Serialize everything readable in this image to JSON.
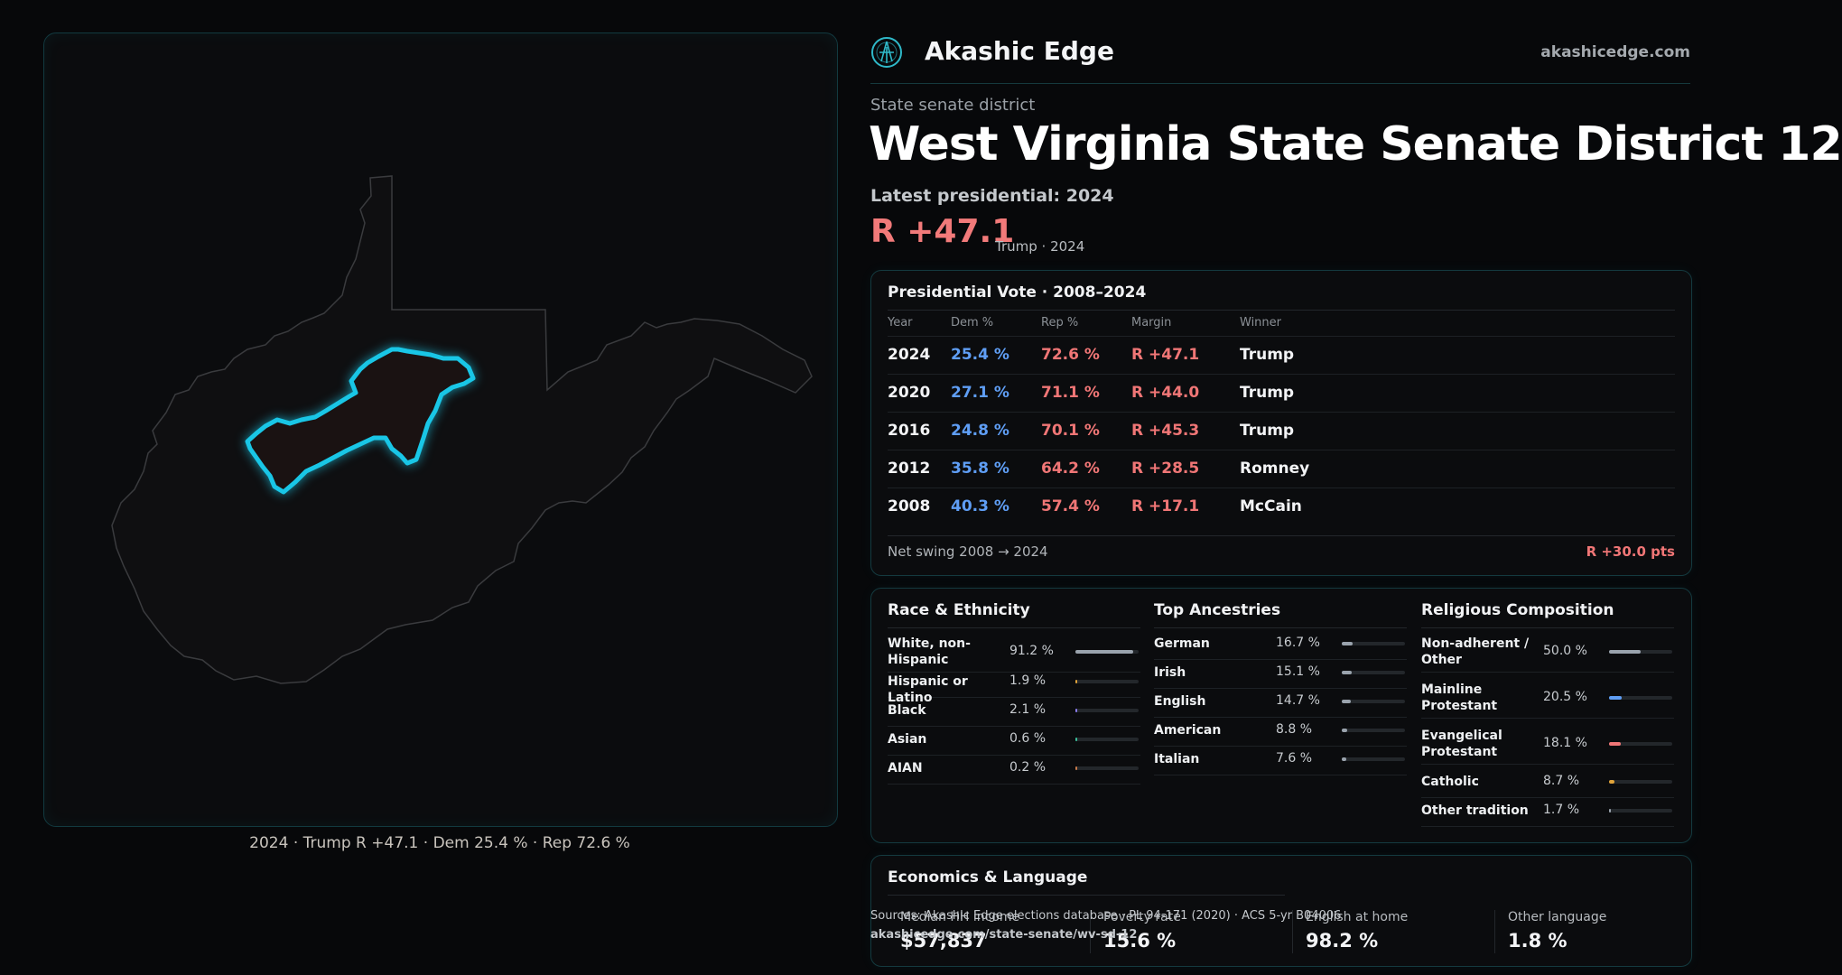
{
  "brand": {
    "name": "Akashic Edge",
    "url": "akashicedge.com",
    "logo_icon": "compass-logo-icon"
  },
  "kicker": "State senate district",
  "title": "West Virginia State Senate District 12",
  "latest_label": "Latest presidential: 2024",
  "headline_margin": "R +47.1",
  "headline_sub": "Trump · 2024",
  "map_caption": "2024 · Trump R +47.1 · Dem 25.4 % · Rep 72.6 %",
  "presidential": {
    "title": "Presidential Vote · 2008–2024",
    "headers": [
      "Year",
      "Dem %",
      "Rep %",
      "Margin",
      "Winner"
    ],
    "rows": [
      {
        "year": "2024",
        "dem": "25.4 %",
        "rep": "72.6 %",
        "margin": "R +47.1",
        "winner": "Trump"
      },
      {
        "year": "2020",
        "dem": "27.1 %",
        "rep": "71.1 %",
        "margin": "R +44.0",
        "winner": "Trump"
      },
      {
        "year": "2016",
        "dem": "24.8 %",
        "rep": "70.1 %",
        "margin": "R +45.3",
        "winner": "Trump"
      },
      {
        "year": "2012",
        "dem": "35.8 %",
        "rep": "64.2 %",
        "margin": "R +28.5",
        "winner": "Romney"
      },
      {
        "year": "2008",
        "dem": "40.3 %",
        "rep": "57.4 %",
        "margin": "R +17.1",
        "winner": "McCain"
      }
    ],
    "swing_label": "Net swing 2008 → 2024",
    "swing_value": "R +30.0 pts"
  },
  "race": {
    "title": "Race & Ethnicity",
    "rows": [
      {
        "label": "White, non-Hispanic",
        "value": "91.2 %",
        "pct": 91.2,
        "color": "#9aa3ad"
      },
      {
        "label": "Hispanic or Latino",
        "value": "1.9 %",
        "pct": 1.9,
        "color": "#e0a33a"
      },
      {
        "label": "Black",
        "value": "2.1 %",
        "pct": 2.1,
        "color": "#8b7cf0"
      },
      {
        "label": "Asian",
        "value": "0.6 %",
        "pct": 0.6,
        "color": "#3bbf9a"
      },
      {
        "label": "AIAN",
        "value": "0.2 %",
        "pct": 0.2,
        "color": "#c97b4b"
      }
    ]
  },
  "ancestry": {
    "title": "Top Ancestries",
    "rows": [
      {
        "label": "German",
        "value": "16.7 %",
        "pct": 16.7,
        "color": "#9aa3ad"
      },
      {
        "label": "Irish",
        "value": "15.1 %",
        "pct": 15.1,
        "color": "#9aa3ad"
      },
      {
        "label": "English",
        "value": "14.7 %",
        "pct": 14.7,
        "color": "#9aa3ad"
      },
      {
        "label": "American",
        "value": "8.8 %",
        "pct": 8.8,
        "color": "#9aa3ad"
      },
      {
        "label": "Italian",
        "value": "7.6 %",
        "pct": 7.6,
        "color": "#9aa3ad"
      }
    ]
  },
  "religion": {
    "title": "Religious Composition",
    "rows": [
      {
        "label": "Non-adherent / Other",
        "value": "50.0 %",
        "pct": 50.0,
        "color": "#9aa3ad"
      },
      {
        "label": "Mainline Protestant",
        "value": "20.5 %",
        "pct": 20.5,
        "color": "#5f9ef5"
      },
      {
        "label": "Evangelical Protestant",
        "value": "18.1 %",
        "pct": 18.1,
        "color": "#f07676"
      },
      {
        "label": "Catholic",
        "value": "8.7 %",
        "pct": 8.7,
        "color": "#e0a33a"
      },
      {
        "label": "Other tradition",
        "value": "1.7 %",
        "pct": 1.7,
        "color": "#9aa3ad"
      }
    ]
  },
  "economics": {
    "title": "Economics & Language",
    "cells": [
      {
        "label": "Median HH income",
        "value": "$57,837"
      },
      {
        "label": "Poverty rate",
        "value": "15.6 %"
      },
      {
        "label": "English at home",
        "value": "98.2 %"
      },
      {
        "label": "Other language",
        "value": "1.8 %"
      }
    ]
  },
  "source": {
    "line1": "Sources: Akashic Edge elections database · PL 94-171 (2020) · ACS 5-yr B04006",
    "line2": "akashicedge.com/state-senate/wv-sd-12"
  },
  "colors": {
    "dem": "#5f9ef5",
    "rep": "#f07676",
    "district_outline": "#19c6e6",
    "accent_border": "#143a3f"
  }
}
